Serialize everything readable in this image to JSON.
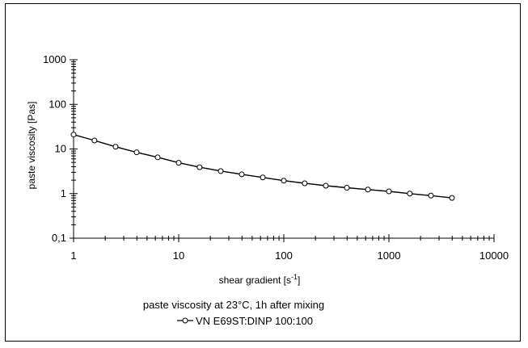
{
  "chart_data": {
    "type": "line",
    "title": "",
    "xlabel": "shear gradient  [s",
    "xlabel_sup": "-1",
    "xlabel_end": "]",
    "ylabel": "paste viscosity   [Pas]",
    "x_scale": "log",
    "y_scale": "log",
    "xlim": [
      1,
      10000
    ],
    "ylim": [
      0.1,
      1000
    ],
    "x_ticks": [
      {
        "value": 1,
        "label": "1"
      },
      {
        "value": 10,
        "label": "10"
      },
      {
        "value": 100,
        "label": "100"
      },
      {
        "value": 1000,
        "label": "1000"
      },
      {
        "value": 10000,
        "label": "10000"
      }
    ],
    "y_ticks": [
      {
        "value": 0.1,
        "label": "0,1"
      },
      {
        "value": 1,
        "label": "1"
      },
      {
        "value": 10,
        "label": "10"
      },
      {
        "value": 100,
        "label": "100"
      },
      {
        "value": 1000,
        "label": "1000"
      }
    ],
    "grid": false,
    "legend_title_1": "paste viscosity at 23°C, 1h after mixing",
    "series": [
      {
        "name": "VN E69ST:DINP  100:100",
        "color": "#000000",
        "marker": "open-circle",
        "x": [
          1,
          1.58,
          2.51,
          3.98,
          6.31,
          10,
          15.8,
          25.1,
          39.8,
          63.1,
          100,
          158,
          251,
          398,
          631,
          1000,
          1580,
          2510,
          3980
        ],
        "y": [
          21,
          15.5,
          11.2,
          8.4,
          6.5,
          4.9,
          3.9,
          3.2,
          2.7,
          2.3,
          1.95,
          1.7,
          1.5,
          1.35,
          1.23,
          1.12,
          1.0,
          0.9,
          0.8
        ]
      }
    ]
  }
}
